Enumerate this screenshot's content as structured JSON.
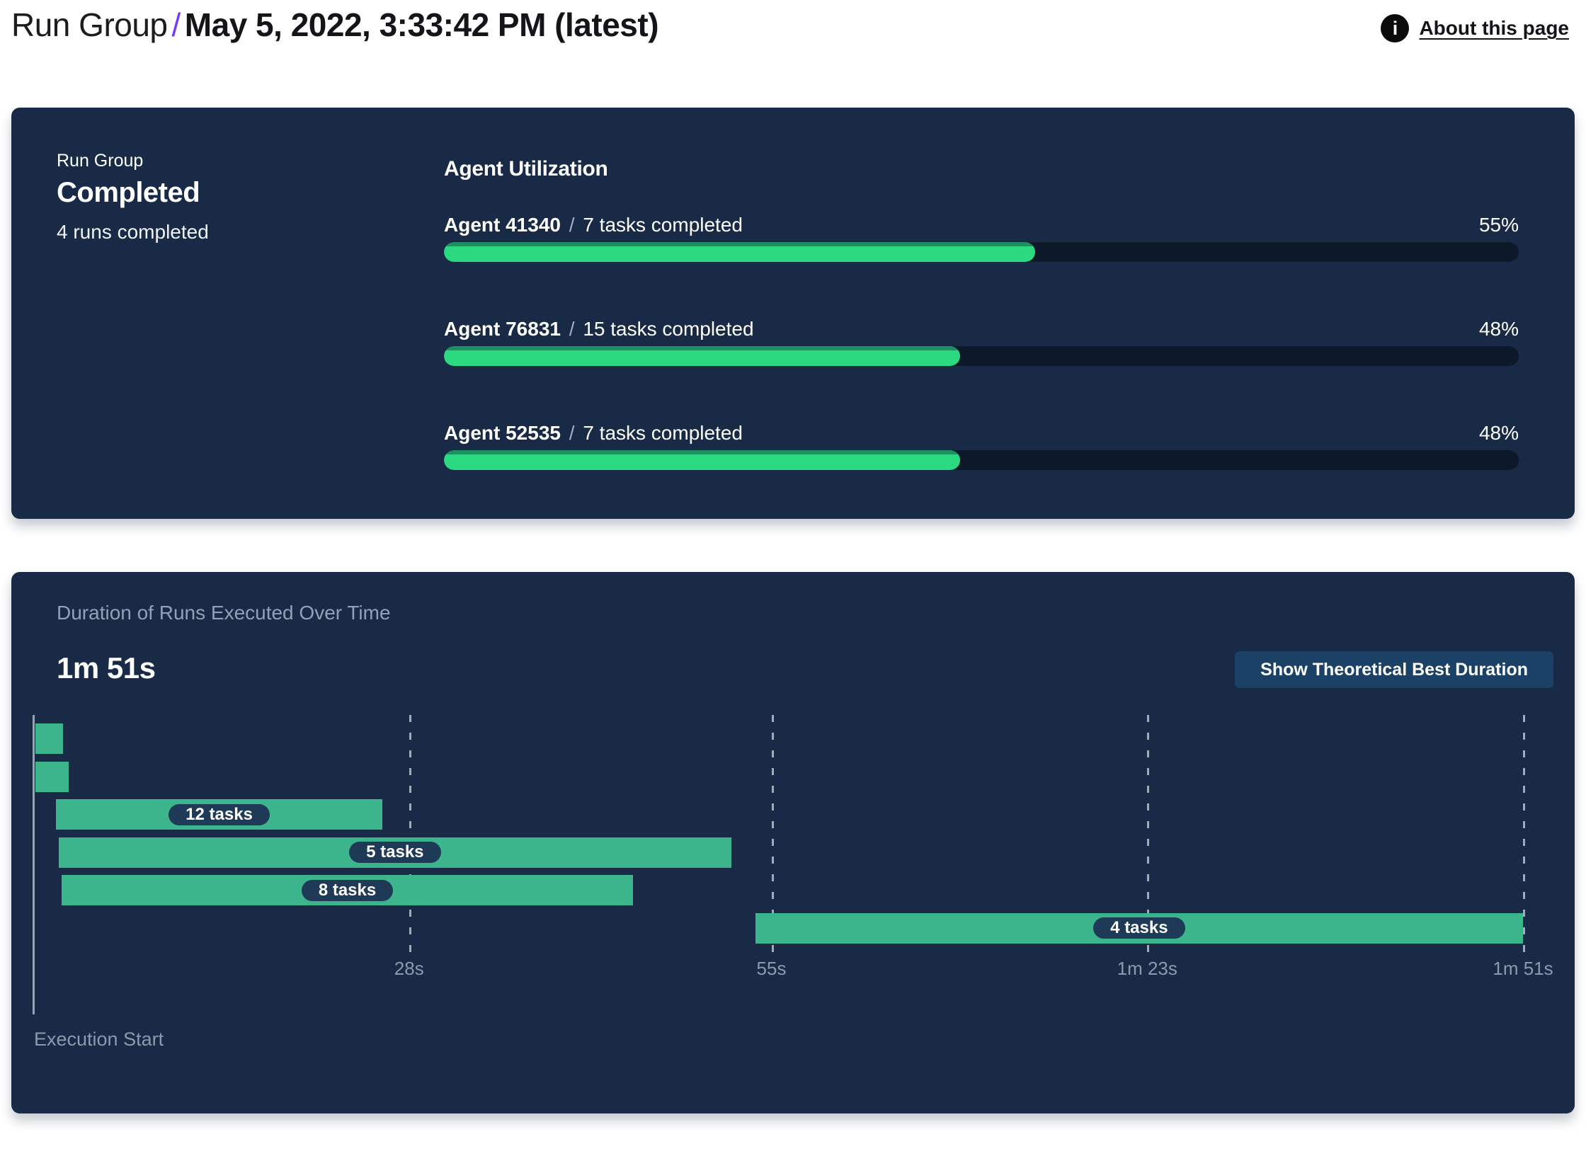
{
  "header": {
    "breadcrumb_root": "Run Group",
    "breadcrumb_separator": "/",
    "title": "May 5, 2022, 3:33:42 PM (latest)",
    "about_label": "About this page",
    "accent_color": "#7a3bf5"
  },
  "status_card": {
    "label": "Run Group",
    "status": "Completed",
    "detail": "4 runs completed"
  },
  "agent_utilization": {
    "title": "Agent Utilization",
    "separator": "/",
    "agents": [
      {
        "name": "Agent 41340",
        "tasks": "7 tasks completed",
        "percent": 55,
        "percent_label": "55%"
      },
      {
        "name": "Agent 76831",
        "tasks": "15 tasks completed",
        "percent": 48,
        "percent_label": "48%"
      },
      {
        "name": "Agent 52535",
        "tasks": "7 tasks completed",
        "percent": 48,
        "percent_label": "48%"
      }
    ],
    "colors": {
      "fill": "#2bd980",
      "fill_top_edge": "#1f8e62",
      "track": "#0d1929"
    }
  },
  "duration_panel": {
    "subtitle": "Duration of Runs Executed Over Time",
    "total_label": "1m 51s",
    "button_label": "Show Theoretical Best Duration",
    "execution_start_label": "Execution Start"
  },
  "chart_data": {
    "type": "bar",
    "variant": "gantt-timeline",
    "title": "Duration of Runs Executed Over Time",
    "total_duration_label": "1m 51s",
    "x_unit": "seconds",
    "x_min": 0,
    "x_max": 111,
    "x_ticks": [
      {
        "t": 28,
        "label": "28s"
      },
      {
        "t": 55,
        "label": "55s"
      },
      {
        "t": 83,
        "label": "1m 23s"
      },
      {
        "t": 111,
        "label": "1m 51s"
      }
    ],
    "bars": [
      {
        "start": 0.15,
        "end": 2.2,
        "label": ""
      },
      {
        "start": 0.15,
        "end": 2.65,
        "label": ""
      },
      {
        "start": 1.7,
        "end": 26,
        "label": "12 tasks"
      },
      {
        "start": 1.9,
        "end": 52,
        "label": "5 tasks"
      },
      {
        "start": 2.1,
        "end": 44.7,
        "label": "8 tasks"
      },
      {
        "start": 53.8,
        "end": 111,
        "label": "4 tasks"
      }
    ],
    "bar_color": "#3cb58c",
    "label_chip_color": "#1e3a56",
    "grid": "dashed-vertical",
    "panel_color": "#182a45"
  }
}
